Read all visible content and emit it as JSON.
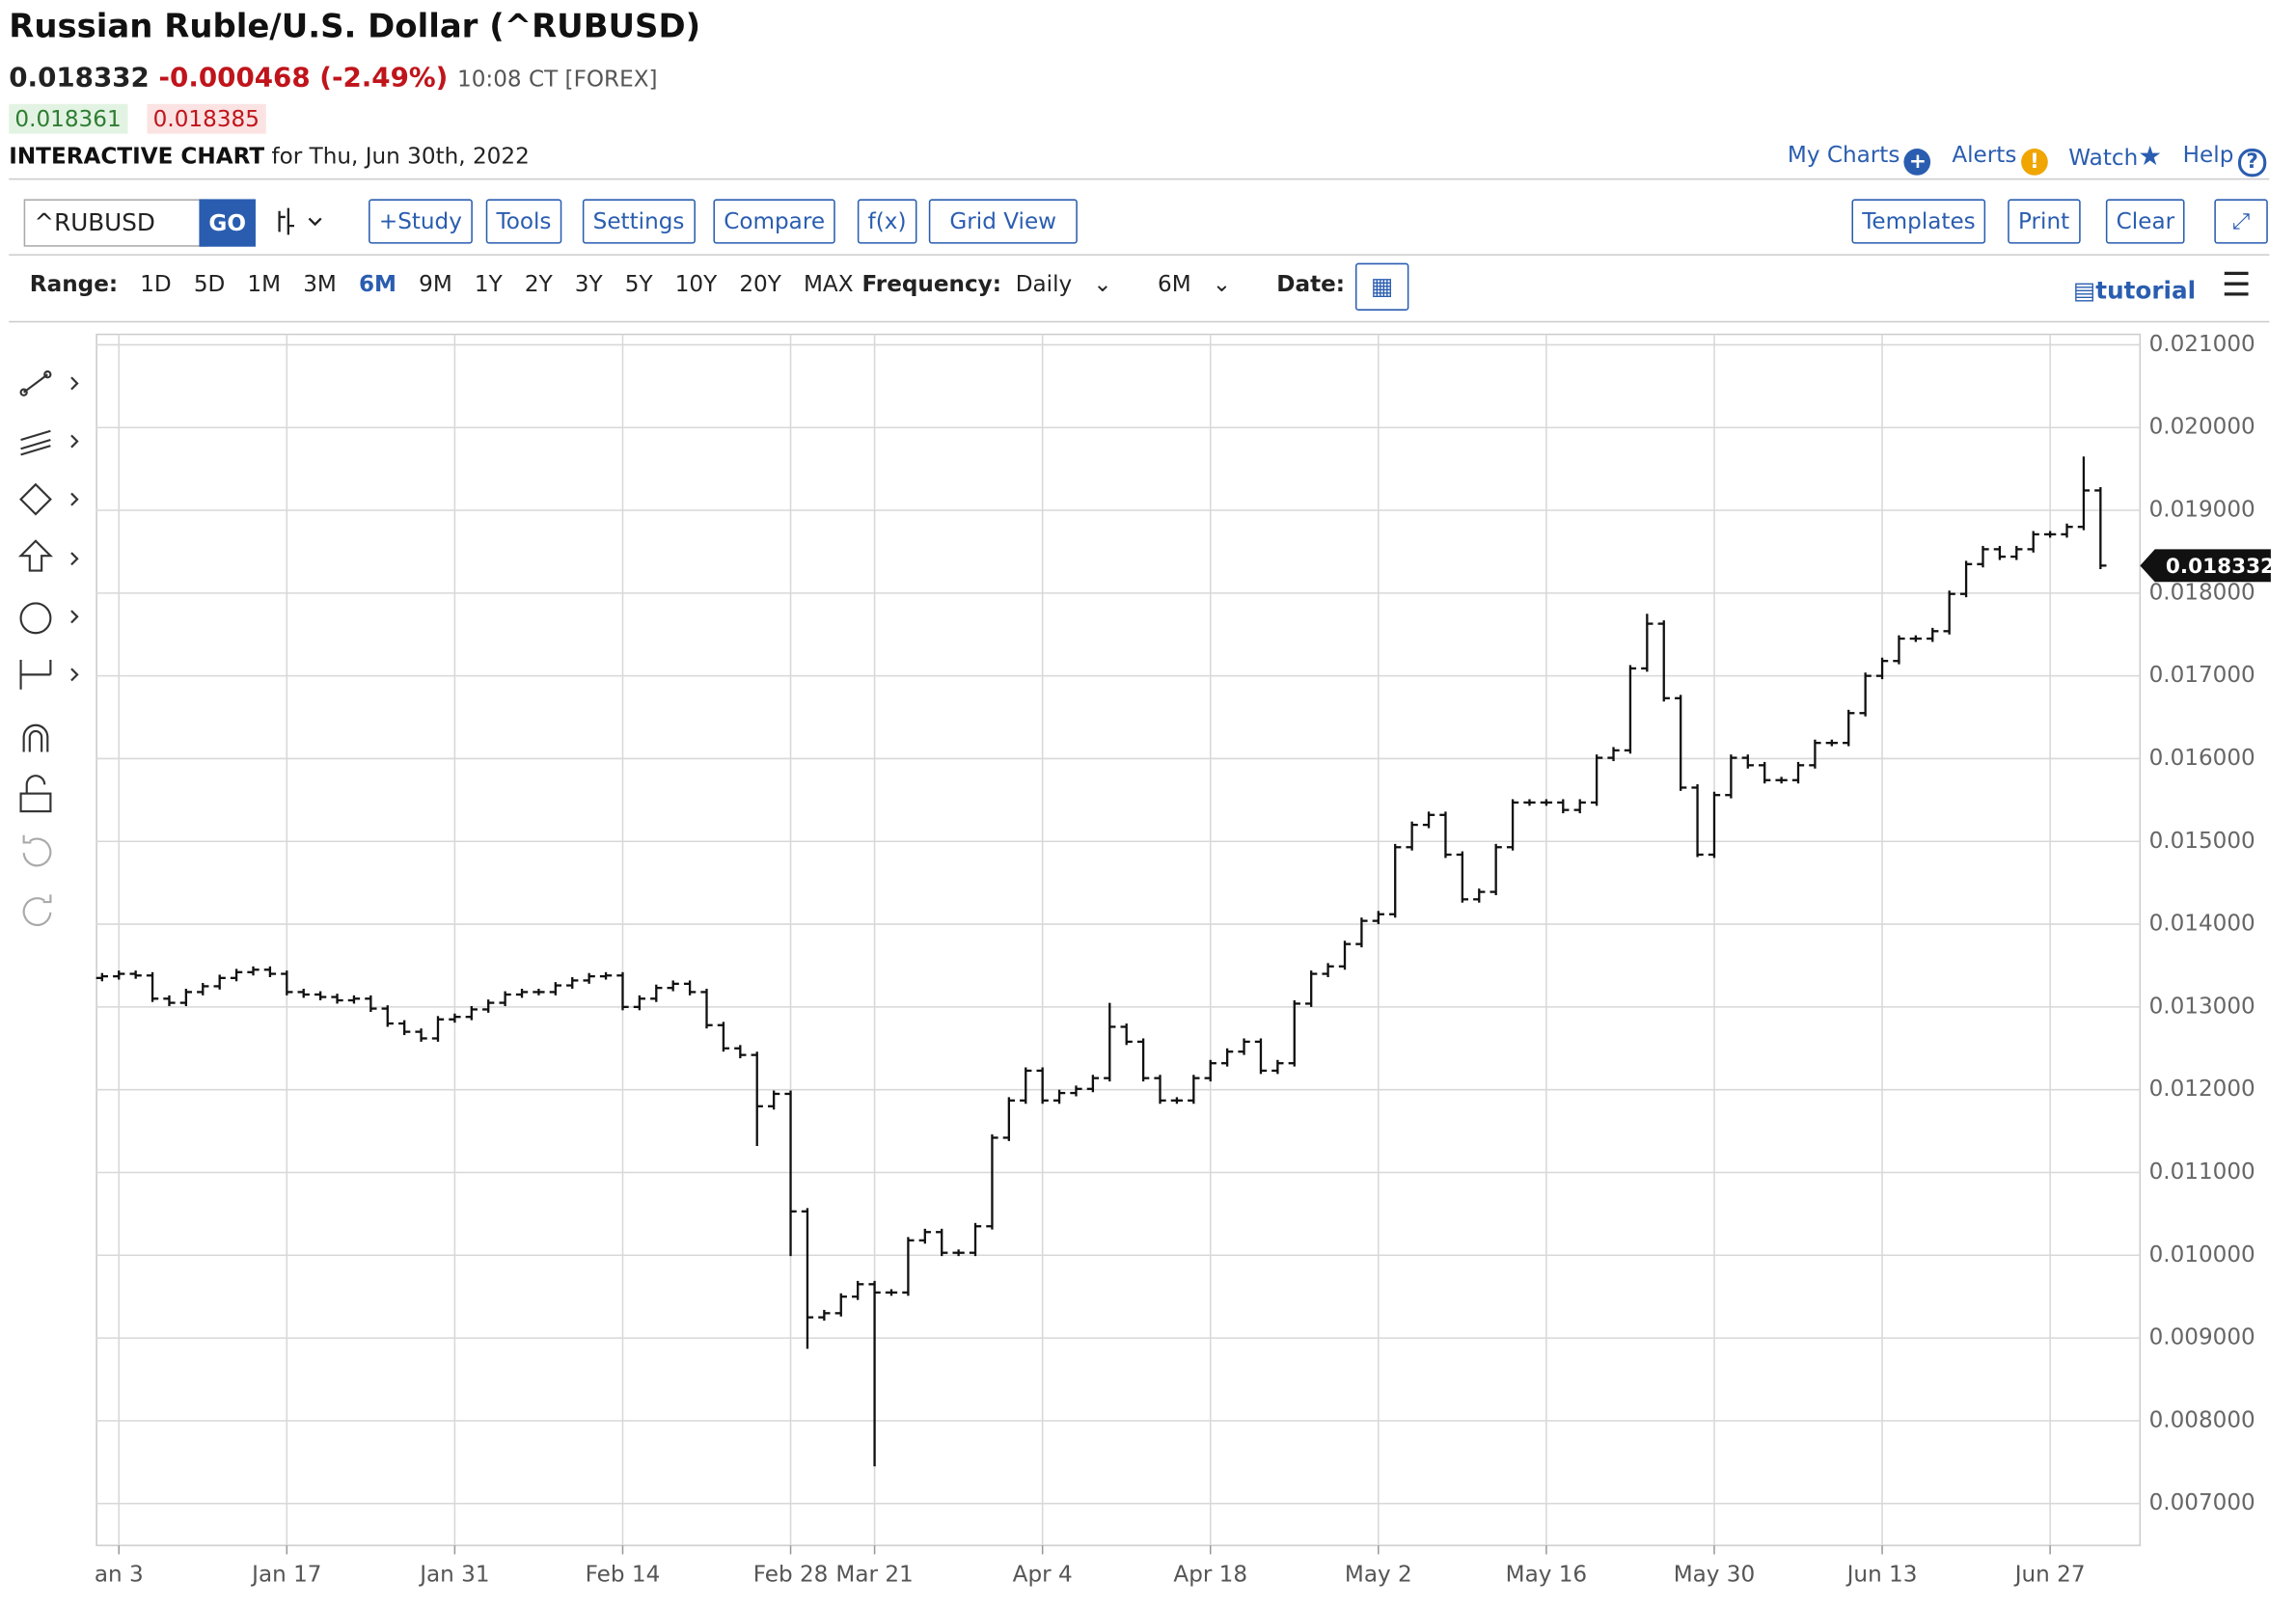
{
  "header": {
    "title": "Russian Ruble/U.S. Dollar (^RUBUSD)",
    "price": "0.018332",
    "change": "-0.000468 (-2.49%)",
    "time": "10:08 CT [FOREX]",
    "bid": "0.018361",
    "ask": "0.018385",
    "chart_label": "INTERACTIVE CHART",
    "date": "for Thu, Jun 30th, 2022"
  },
  "links": [
    "My Charts",
    "Alerts",
    "Watch",
    "Help"
  ],
  "toolbar": {
    "symbol": "^RUBUSD",
    "go": "GO",
    "buttons": [
      "+Study",
      "Tools",
      "Settings",
      "Compare",
      "f(x)",
      "Grid View"
    ],
    "right_buttons": [
      "Templates",
      "Print",
      "Clear"
    ]
  },
  "range": {
    "label": "Range:",
    "options": [
      "1D",
      "5D",
      "1M",
      "3M",
      "6M",
      "9M",
      "1Y",
      "2Y",
      "3Y",
      "5Y",
      "10Y",
      "20Y",
      "MAX"
    ],
    "selected_index": 4,
    "frequency_label": "Frequency:",
    "frequency": "Daily",
    "period": "6M",
    "date_label": "Date:",
    "tutorial": "tutorial"
  },
  "chart_data": {
    "type": "ohlc",
    "color": "#111111",
    "grid": true,
    "ylim": [
      0.006494,
      0.021126
    ],
    "yticks": [
      {
        "value": 0.007,
        "label": "0.007000"
      },
      {
        "value": 0.008,
        "label": "0.008000"
      },
      {
        "value": 0.009,
        "label": "0.009000"
      },
      {
        "value": 0.01,
        "label": "0.010000"
      },
      {
        "value": 0.011,
        "label": "0.011000"
      },
      {
        "value": 0.012,
        "label": "0.012000"
      },
      {
        "value": 0.013,
        "label": "0.013000"
      },
      {
        "value": 0.014,
        "label": "0.014000"
      },
      {
        "value": 0.015,
        "label": "0.015000"
      },
      {
        "value": 0.016,
        "label": "0.016000"
      },
      {
        "value": 0.017,
        "label": "0.017000"
      },
      {
        "value": 0.018,
        "label": "0.018000"
      },
      {
        "value": 0.019,
        "label": "0.019000"
      },
      {
        "value": 0.02,
        "label": "0.020000"
      },
      {
        "value": 0.021,
        "label": "0.021000"
      }
    ],
    "categories": [
      null,
      "an 3",
      null,
      null,
      null,
      null,
      null,
      null,
      null,
      null,
      null,
      "Jan 17",
      null,
      null,
      null,
      null,
      null,
      null,
      null,
      null,
      null,
      "Jan 31",
      null,
      null,
      null,
      null,
      null,
      null,
      null,
      null,
      null,
      "Feb 14",
      null,
      null,
      null,
      null,
      null,
      null,
      null,
      null,
      null,
      "Feb 28",
      null,
      null,
      null,
      null,
      "Mar 21",
      null,
      null,
      null,
      null,
      null,
      null,
      null,
      null,
      null,
      "Apr 4",
      null,
      null,
      null,
      null,
      null,
      null,
      null,
      null,
      null,
      "Apr 18",
      null,
      null,
      null,
      null,
      null,
      null,
      null,
      null,
      null,
      "May 2",
      null,
      null,
      null,
      null,
      null,
      null,
      null,
      null,
      null,
      "May 16",
      null,
      null,
      null,
      null,
      null,
      null,
      null,
      null,
      null,
      "May 30",
      null,
      null,
      null,
      null,
      null,
      null,
      null,
      null,
      null,
      "Jun 13",
      null,
      null,
      null,
      null,
      null,
      null,
      null,
      null,
      null,
      "Jun 27",
      null,
      null,
      null
    ],
    "ohlc": [
      [
        0.01335,
        0.01341,
        0.01331,
        0.01337
      ],
      [
        0.01337,
        0.01344,
        0.01333,
        0.0134
      ],
      [
        0.0134,
        0.01344,
        0.01334,
        0.01338
      ],
      [
        0.01338,
        0.01342,
        0.01306,
        0.0131
      ],
      [
        0.0131,
        0.01314,
        0.01301,
        0.01305
      ],
      [
        0.01305,
        0.01322,
        0.01301,
        0.01318
      ],
      [
        0.01318,
        0.01329,
        0.01314,
        0.01325
      ],
      [
        0.01325,
        0.01339,
        0.01321,
        0.01335
      ],
      [
        0.01335,
        0.01346,
        0.01331,
        0.01342
      ],
      [
        0.01342,
        0.01349,
        0.01338,
        0.01345
      ],
      [
        0.01345,
        0.01349,
        0.01336,
        0.0134
      ],
      [
        0.0134,
        0.01344,
        0.01314,
        0.01318
      ],
      [
        0.01318,
        0.01322,
        0.01311,
        0.01315
      ],
      [
        0.01315,
        0.01319,
        0.01308,
        0.01312
      ],
      [
        0.01312,
        0.01316,
        0.01304,
        0.01308
      ],
      [
        0.01308,
        0.01314,
        0.01304,
        0.0131
      ],
      [
        0.0131,
        0.01314,
        0.01294,
        0.01298
      ],
      [
        0.01298,
        0.01302,
        0.01276,
        0.0128
      ],
      [
        0.0128,
        0.01284,
        0.01266,
        0.0127
      ],
      [
        0.0127,
        0.01274,
        0.01258,
        0.01262
      ],
      [
        0.01262,
        0.01289,
        0.01258,
        0.01285
      ],
      [
        0.01285,
        0.01292,
        0.01281,
        0.01288
      ],
      [
        0.01288,
        0.01301,
        0.01284,
        0.01297
      ],
      [
        0.01297,
        0.01309,
        0.01293,
        0.01305
      ],
      [
        0.01305,
        0.01319,
        0.01301,
        0.01315
      ],
      [
        0.01315,
        0.01322,
        0.01311,
        0.01318
      ],
      [
        0.01318,
        0.01322,
        0.01314,
        0.01318
      ],
      [
        0.01318,
        0.0133,
        0.01314,
        0.01326
      ],
      [
        0.01326,
        0.01336,
        0.01322,
        0.01332
      ],
      [
        0.01332,
        0.01341,
        0.01328,
        0.01337
      ],
      [
        0.01337,
        0.01342,
        0.01333,
        0.01338
      ],
      [
        0.01338,
        0.01342,
        0.01296,
        0.013
      ],
      [
        0.013,
        0.01314,
        0.01296,
        0.0131
      ],
      [
        0.0131,
        0.01327,
        0.01306,
        0.01323
      ],
      [
        0.01323,
        0.01332,
        0.01319,
        0.01328
      ],
      [
        0.01328,
        0.01332,
        0.01314,
        0.01318
      ],
      [
        0.01318,
        0.01322,
        0.01274,
        0.01278
      ],
      [
        0.01278,
        0.01282,
        0.01246,
        0.0125
      ],
      [
        0.0125,
        0.01254,
        0.01238,
        0.01242
      ],
      [
        0.01242,
        0.01246,
        0.01132,
        0.0118
      ],
      [
        0.0118,
        0.01199,
        0.01176,
        0.01195
      ],
      [
        0.01195,
        0.01199,
        0.00999,
        0.01053
      ],
      [
        0.01053,
        0.01057,
        0.00887,
        0.00925
      ],
      [
        0.00925,
        0.00934,
        0.00921,
        0.0093
      ],
      [
        0.0093,
        0.00954,
        0.00926,
        0.0095
      ],
      [
        0.0095,
        0.00969,
        0.00946,
        0.00965
      ],
      [
        0.00965,
        0.00969,
        0.00745,
        0.00955
      ],
      [
        0.00955,
        0.00959,
        0.00951,
        0.00955
      ],
      [
        0.00955,
        0.01022,
        0.00951,
        0.01018
      ],
      [
        0.01018,
        0.01032,
        0.01014,
        0.01028
      ],
      [
        0.01028,
        0.01032,
        0.00999,
        0.01003
      ],
      [
        0.01003,
        0.01007,
        0.00999,
        0.01003
      ],
      [
        0.01003,
        0.01039,
        0.00999,
        0.01035
      ],
      [
        0.01035,
        0.01146,
        0.01031,
        0.01142
      ],
      [
        0.01142,
        0.01191,
        0.01138,
        0.01187
      ],
      [
        0.01187,
        0.01227,
        0.01183,
        0.01223
      ],
      [
        0.01223,
        0.01227,
        0.01183,
        0.01187
      ],
      [
        0.01187,
        0.012,
        0.01183,
        0.01196
      ],
      [
        0.01196,
        0.01205,
        0.01192,
        0.01201
      ],
      [
        0.01201,
        0.01218,
        0.01197,
        0.01214
      ],
      [
        0.01214,
        0.01305,
        0.0121,
        0.01276
      ],
      [
        0.01276,
        0.0128,
        0.01254,
        0.01258
      ],
      [
        0.01258,
        0.01262,
        0.0121,
        0.01214
      ],
      [
        0.01214,
        0.01218,
        0.01183,
        0.01187
      ],
      [
        0.01187,
        0.01191,
        0.01183,
        0.01187
      ],
      [
        0.01187,
        0.01218,
        0.01183,
        0.01214
      ],
      [
        0.01214,
        0.01236,
        0.0121,
        0.01232
      ],
      [
        0.01232,
        0.0125,
        0.01228,
        0.01246
      ],
      [
        0.01246,
        0.01262,
        0.01242,
        0.01258
      ],
      [
        0.01258,
        0.01262,
        0.01219,
        0.01223
      ],
      [
        0.01223,
        0.01236,
        0.01219,
        0.01232
      ],
      [
        0.01232,
        0.01308,
        0.01228,
        0.01304
      ],
      [
        0.01304,
        0.01344,
        0.013,
        0.0134
      ],
      [
        0.0134,
        0.01353,
        0.01336,
        0.01349
      ],
      [
        0.01349,
        0.0138,
        0.01345,
        0.01376
      ],
      [
        0.01376,
        0.01408,
        0.01372,
        0.01404
      ],
      [
        0.01404,
        0.01416,
        0.014,
        0.01412
      ],
      [
        0.01412,
        0.01497,
        0.01408,
        0.01493
      ],
      [
        0.01493,
        0.01524,
        0.01489,
        0.0152
      ],
      [
        0.0152,
        0.01536,
        0.01516,
        0.01532
      ],
      [
        0.01532,
        0.01536,
        0.0148,
        0.01484
      ],
      [
        0.01484,
        0.01488,
        0.01426,
        0.0143
      ],
      [
        0.0143,
        0.01443,
        0.01426,
        0.01439
      ],
      [
        0.01439,
        0.01497,
        0.01435,
        0.01493
      ],
      [
        0.01493,
        0.01551,
        0.01489,
        0.01547
      ],
      [
        0.01547,
        0.01551,
        0.01543,
        0.01547
      ],
      [
        0.01547,
        0.01551,
        0.01543,
        0.01547
      ],
      [
        0.01547,
        0.01551,
        0.01534,
        0.01538
      ],
      [
        0.01538,
        0.01551,
        0.01534,
        0.01547
      ],
      [
        0.01547,
        0.01605,
        0.01543,
        0.01601
      ],
      [
        0.01601,
        0.01614,
        0.01597,
        0.0161
      ],
      [
        0.0161,
        0.01713,
        0.01606,
        0.01709
      ],
      [
        0.01709,
        0.01775,
        0.01705,
        0.01763
      ],
      [
        0.01763,
        0.01767,
        0.01669,
        0.01673
      ],
      [
        0.01673,
        0.01677,
        0.01561,
        0.01565
      ],
      [
        0.01565,
        0.01569,
        0.01481,
        0.01484
      ],
      [
        0.01484,
        0.0156,
        0.0148,
        0.01556
      ],
      [
        0.01556,
        0.01605,
        0.01552,
        0.01601
      ],
      [
        0.01601,
        0.01605,
        0.01588,
        0.01592
      ],
      [
        0.01592,
        0.01596,
        0.0157,
        0.01574
      ],
      [
        0.01574,
        0.01578,
        0.0157,
        0.01574
      ],
      [
        0.01574,
        0.01596,
        0.0157,
        0.01592
      ],
      [
        0.01592,
        0.01623,
        0.01588,
        0.01619
      ],
      [
        0.01619,
        0.01623,
        0.01615,
        0.01619
      ],
      [
        0.01619,
        0.01659,
        0.01615,
        0.01655
      ],
      [
        0.01655,
        0.01704,
        0.01651,
        0.017
      ],
      [
        0.017,
        0.01722,
        0.01696,
        0.01718
      ],
      [
        0.01718,
        0.01749,
        0.01714,
        0.01745
      ],
      [
        0.01745,
        0.01749,
        0.01741,
        0.01745
      ],
      [
        0.01745,
        0.01758,
        0.01741,
        0.01754
      ],
      [
        0.01754,
        0.01803,
        0.0175,
        0.01799
      ],
      [
        0.01799,
        0.01839,
        0.01795,
        0.01835
      ],
      [
        0.01835,
        0.01857,
        0.01831,
        0.01853
      ],
      [
        0.01853,
        0.01857,
        0.0184,
        0.01844
      ],
      [
        0.01844,
        0.01857,
        0.0184,
        0.01853
      ],
      [
        0.01853,
        0.01875,
        0.01849,
        0.01871
      ],
      [
        0.01871,
        0.01875,
        0.01867,
        0.01871
      ],
      [
        0.01871,
        0.01884,
        0.01867,
        0.0188
      ],
      [
        0.0188,
        0.01965,
        0.01876,
        0.01924
      ],
      [
        0.01924,
        0.01928,
        0.01829,
        0.018332
      ]
    ]
  }
}
